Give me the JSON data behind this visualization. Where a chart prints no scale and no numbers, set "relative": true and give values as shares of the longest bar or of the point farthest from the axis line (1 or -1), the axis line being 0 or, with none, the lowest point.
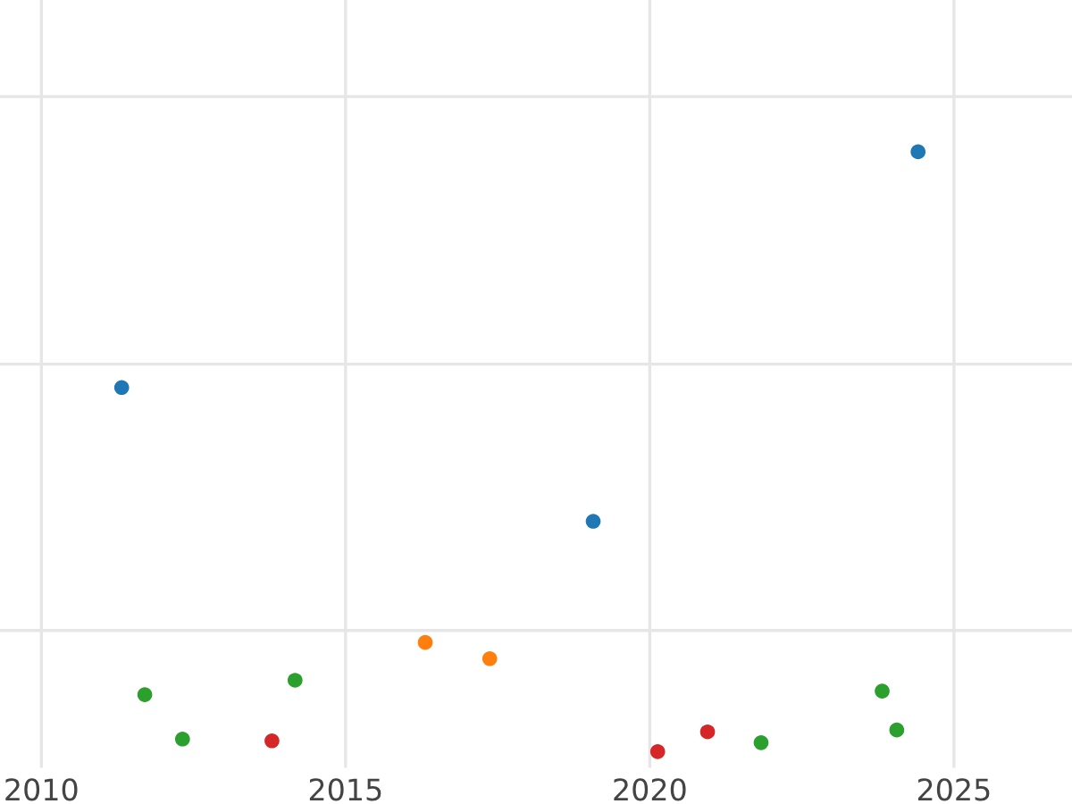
{
  "chart_data": {
    "type": "scatter",
    "relative": true,
    "grid": true,
    "marker": "circle",
    "xlim": [
      2009.32,
      2026.94
    ],
    "xticks": [
      2010,
      2015,
      2020,
      2025
    ],
    "series": [
      {
        "color": "#1f77b4",
        "x": [
          2011.32,
          2019.07,
          2024.41
        ],
        "values": [
          0.607,
          0.384,
          1
        ]
      },
      {
        "color": "#ff7f0e",
        "x": [
          2016.31,
          2017.37
        ],
        "values": [
          0.182,
          0.155
        ]
      },
      {
        "color": "#2ca02c",
        "x": [
          2011.7,
          2012.32,
          2014.17,
          2021.83,
          2023.82,
          2024.06
        ],
        "values": [
          0.095,
          0.021,
          0.119,
          0.015,
          0.101,
          0.036
        ]
      },
      {
        "color": "#d62728",
        "x": [
          2013.79,
          2020.13,
          2020.95
        ],
        "values": [
          0.018,
          0,
          0.033
        ]
      }
    ]
  }
}
